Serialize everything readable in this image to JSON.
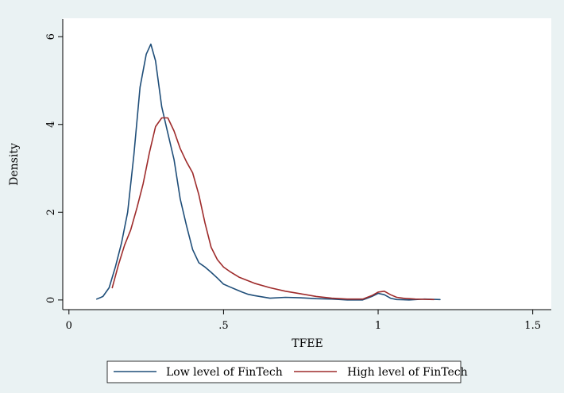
{
  "chart_data": {
    "type": "line",
    "title": "",
    "xlabel": "TFEE",
    "ylabel": "Density",
    "xlim": [
      -0.02,
      1.56
    ],
    "ylim": [
      -0.22,
      6.42
    ],
    "xticks": [
      0,
      0.5,
      1,
      1.5
    ],
    "xtick_labels": [
      "0",
      ".5",
      "1",
      "1.5"
    ],
    "yticks": [
      0,
      2,
      4,
      6
    ],
    "ytick_labels": [
      "0",
      "2",
      "4",
      "6"
    ],
    "grid": false,
    "legend_position": "bottom",
    "series": [
      {
        "name": "Low level of FinTech",
        "color": "#1f4e79",
        "x": [
          0.09,
          0.11,
          0.13,
          0.15,
          0.17,
          0.19,
          0.21,
          0.23,
          0.25,
          0.265,
          0.28,
          0.3,
          0.32,
          0.34,
          0.36,
          0.38,
          0.4,
          0.42,
          0.44,
          0.46,
          0.48,
          0.5,
          0.52,
          0.54,
          0.56,
          0.58,
          0.6,
          0.65,
          0.7,
          0.75,
          0.8,
          0.85,
          0.9,
          0.95,
          0.98,
          1.0,
          1.02,
          1.04,
          1.06,
          1.1,
          1.15,
          1.2
        ],
        "y": [
          0.02,
          0.08,
          0.28,
          0.75,
          1.3,
          2.0,
          3.3,
          4.85,
          5.6,
          5.83,
          5.45,
          4.4,
          3.8,
          3.2,
          2.3,
          1.7,
          1.15,
          0.85,
          0.75,
          0.63,
          0.5,
          0.36,
          0.3,
          0.24,
          0.18,
          0.13,
          0.1,
          0.04,
          0.06,
          0.05,
          0.03,
          0.02,
          0.0,
          0.0,
          0.08,
          0.15,
          0.12,
          0.04,
          0.01,
          0.0,
          0.02,
          0.01
        ]
      },
      {
        "name": "High level of FinTech",
        "color": "#9e2b2b",
        "x": [
          0.14,
          0.16,
          0.18,
          0.2,
          0.22,
          0.24,
          0.26,
          0.28,
          0.3,
          0.32,
          0.34,
          0.36,
          0.38,
          0.4,
          0.42,
          0.44,
          0.46,
          0.48,
          0.5,
          0.52,
          0.55,
          0.6,
          0.65,
          0.7,
          0.75,
          0.8,
          0.85,
          0.9,
          0.95,
          0.98,
          1.0,
          1.02,
          1.04,
          1.06,
          1.08,
          1.12,
          1.18
        ],
        "y": [
          0.28,
          0.8,
          1.25,
          1.6,
          2.1,
          2.65,
          3.35,
          3.95,
          4.15,
          4.15,
          3.85,
          3.45,
          3.15,
          2.9,
          2.4,
          1.75,
          1.2,
          0.92,
          0.75,
          0.65,
          0.52,
          0.38,
          0.28,
          0.2,
          0.14,
          0.08,
          0.04,
          0.02,
          0.02,
          0.1,
          0.18,
          0.2,
          0.12,
          0.06,
          0.04,
          0.02,
          0.01
        ]
      }
    ]
  }
}
